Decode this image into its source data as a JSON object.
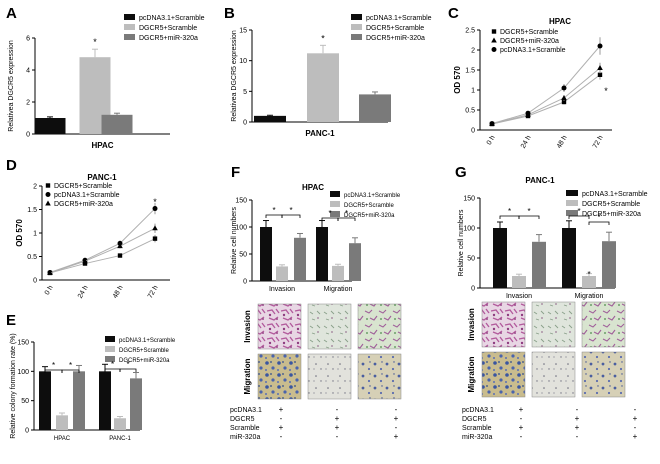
{
  "panel_letters": [
    "A",
    "B",
    "C",
    "D",
    "E",
    "F",
    "G"
  ],
  "colors": {
    "black": "#0d0d0d",
    "light": "#bdbdbd",
    "dark": "#7a7a7a"
  },
  "chart_data": [
    {
      "id": "A",
      "type": "bar",
      "title": "",
      "xlabel": "HPAC",
      "ylabel": "Relativea DGCR5 expression",
      "ylim": [
        0,
        6
      ],
      "ticks": [
        0,
        2,
        4,
        6
      ],
      "legend": [
        "pcDNA3.1+Scramble",
        "DGCR5+Scramble",
        "DGCR5+miR-320a"
      ],
      "groups": [
        {
          "label": "",
          "values": [
            1.0,
            4.8,
            1.2
          ],
          "errors": [
            0.07,
            0.5,
            0.1
          ]
        }
      ],
      "sig": [
        "*"
      ]
    },
    {
      "id": "B",
      "type": "bar",
      "title": "",
      "xlabel": "PANC-1",
      "ylabel": "Relativea DGCR5 expression",
      "ylim": [
        0,
        15
      ],
      "ticks": [
        0,
        5,
        10,
        15
      ],
      "legend": [
        "pcDNA3.1+Scramble",
        "DGCR5+Scramble",
        "DGCR5+miR-320a"
      ],
      "groups": [
        {
          "label": "",
          "values": [
            1.0,
            11.2,
            4.5
          ],
          "errors": [
            0.1,
            1.3,
            0.4
          ]
        }
      ],
      "sig": [
        "*"
      ]
    },
    {
      "id": "C",
      "type": "line",
      "title": "HPAC",
      "xlabel": "",
      "ylabel": "OD 570",
      "ylim": [
        0,
        2.5
      ],
      "ticks": [
        0,
        0.5,
        1.0,
        1.5,
        2.0,
        2.5
      ],
      "x": [
        "0 h",
        "24 h",
        "48 h",
        "72 h"
      ],
      "series": [
        {
          "name": "DGCR5+Scramble",
          "marker": "square",
          "values": [
            0.15,
            0.35,
            0.7,
            1.38
          ],
          "errors": [
            0.02,
            0.04,
            0.06,
            0.12
          ]
        },
        {
          "name": "DGCR5+miR-320a",
          "marker": "triangle",
          "values": [
            0.15,
            0.38,
            0.8,
            1.55
          ],
          "errors": [
            0.02,
            0.04,
            0.07,
            0.13
          ]
        },
        {
          "name": "pcDNA3.1+Scramble",
          "marker": "circle",
          "values": [
            0.16,
            0.42,
            1.05,
            2.1
          ],
          "errors": [
            0.02,
            0.05,
            0.1,
            0.22
          ]
        }
      ],
      "annotations": [
        "*"
      ]
    },
    {
      "id": "D",
      "type": "line",
      "title": "PANC-1",
      "xlabel": "",
      "ylabel": "OD 570",
      "ylim": [
        0,
        2.0
      ],
      "ticks": [
        0,
        0.5,
        1.0,
        1.5,
        2.0
      ],
      "x": [
        "0 h",
        "24 h",
        "48 h",
        "72 h"
      ],
      "series": [
        {
          "name": "DGCR5+Scramble",
          "marker": "square",
          "values": [
            0.15,
            0.35,
            0.52,
            0.88
          ],
          "errors": [
            0.02,
            0.03,
            0.04,
            0.08
          ]
        },
        {
          "name": "pcDNA3.1+Scramble",
          "marker": "circle",
          "values": [
            0.16,
            0.42,
            0.78,
            1.52
          ],
          "errors": [
            0.02,
            0.04,
            0.06,
            0.12
          ]
        },
        {
          "name": "DGCR5+miR-320a",
          "marker": "triangle",
          "values": [
            0.15,
            0.4,
            0.72,
            1.1
          ],
          "errors": [
            0.02,
            0.03,
            0.05,
            0.1
          ]
        }
      ],
      "annotations": [
        "*"
      ]
    },
    {
      "id": "E",
      "type": "bar",
      "title": "",
      "xlabel": "",
      "ylabel": "Relative colony formation rate (%)",
      "ylim": [
        0,
        150
      ],
      "ticks": [
        0,
        50,
        100,
        150
      ],
      "legend": [
        "pcDNA3.1+Scramble",
        "DGCR5+Scramble",
        "DGCR5+miR-320a"
      ],
      "groups": [
        {
          "label": "HPAC",
          "values": [
            100,
            25,
            100
          ],
          "errors": [
            8,
            4,
            10
          ]
        },
        {
          "label": "PANC-1",
          "values": [
            100,
            20,
            88
          ],
          "errors": [
            12,
            3,
            10
          ]
        }
      ],
      "sig": [
        "*",
        "*",
        "*",
        "*"
      ]
    },
    {
      "id": "F",
      "type": "bar",
      "title": "HPAC",
      "xlabel": "",
      "ylabel": "Relative cell numbers",
      "ylim": [
        0,
        150
      ],
      "ticks": [
        0,
        50,
        100,
        150
      ],
      "legend": [
        "pcDNA3.1+Scramble",
        "DGCR5+Scramble",
        "DGCR5+miR-320a"
      ],
      "groups": [
        {
          "label": "Invasion",
          "values": [
            100,
            27,
            80
          ],
          "errors": [
            12,
            3,
            8
          ]
        },
        {
          "label": "Migration",
          "values": [
            100,
            28,
            70
          ],
          "errors": [
            12,
            3,
            10
          ]
        }
      ],
      "sig": [
        "*",
        "*",
        "*",
        "*"
      ]
    },
    {
      "id": "G",
      "type": "bar",
      "title": "PANC-1",
      "xlabel": "",
      "ylabel": "Relative cell numbers",
      "ylim": [
        0,
        150
      ],
      "ticks": [
        0,
        50,
        100,
        150
      ],
      "legend": [
        "pcDNA3.1+Scramble",
        "DGCR5+Scramble",
        "DGCR5+miR-320a"
      ],
      "groups": [
        {
          "label": "Invasion",
          "values": [
            100,
            20,
            77
          ],
          "errors": [
            10,
            3,
            12
          ]
        },
        {
          "label": "Migration",
          "values": [
            100,
            20,
            78
          ],
          "errors": [
            12,
            4,
            15
          ]
        }
      ],
      "sig": [
        "*",
        "*",
        "*",
        "*",
        "*"
      ]
    }
  ],
  "micrographs": {
    "row_labels": [
      "Invasion",
      "Migration"
    ],
    "F": {
      "condition_labels": [
        "pcDNA3.1",
        "DGCR5",
        "Scramble",
        "miR-320a"
      ],
      "condition_signs": [
        [
          "+",
          "-",
          "-"
        ],
        [
          "-",
          "+",
          "+"
        ],
        [
          "+",
          "+",
          "-"
        ],
        [
          "-",
          "-",
          "+"
        ]
      ]
    },
    "G": {
      "condition_labels": [
        "pcDNA3.1",
        "DGCR5",
        "Scramble",
        "miR-320a"
      ],
      "condition_signs": [
        [
          "+",
          "-",
          "-"
        ],
        [
          "-",
          "+",
          "+"
        ],
        [
          "+",
          "+",
          "-"
        ],
        [
          "-",
          "-",
          "+"
        ]
      ]
    }
  }
}
